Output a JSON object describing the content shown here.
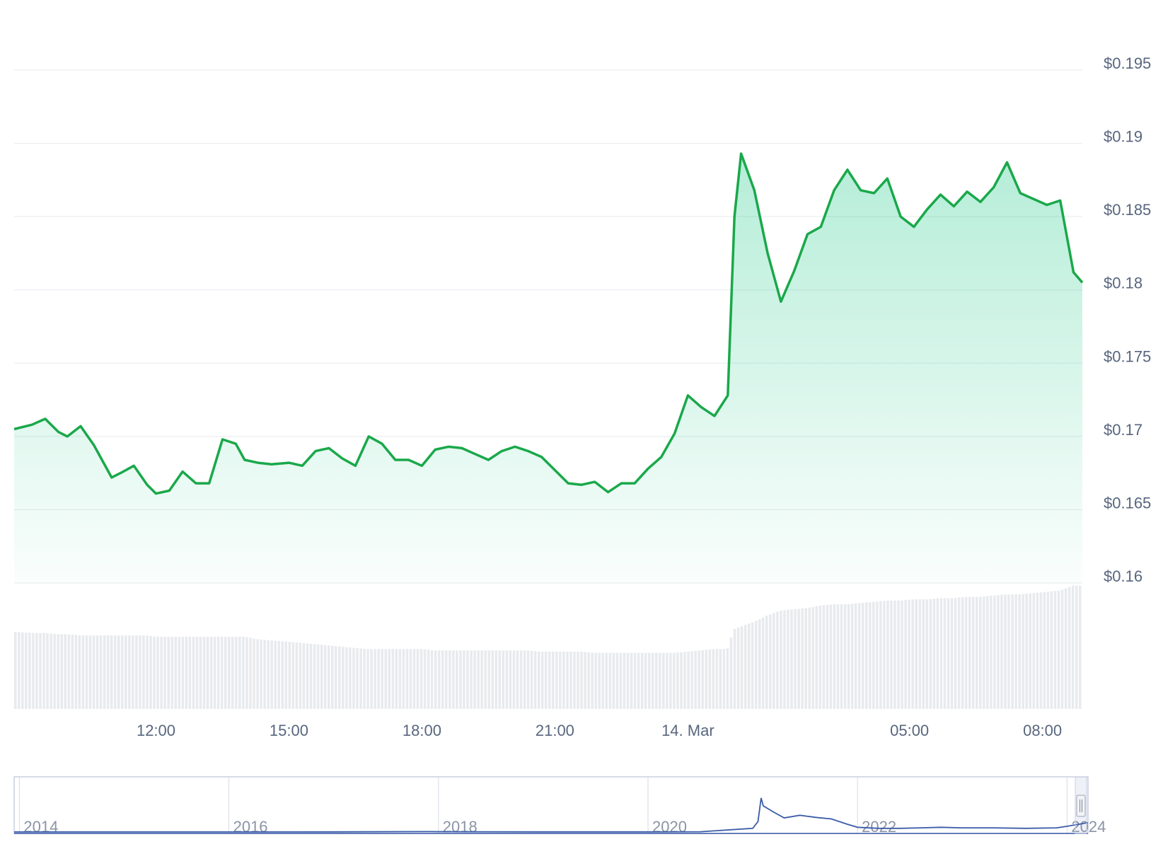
{
  "colors": {
    "line": "#16c784",
    "line_stroke": "#1aa84a",
    "area_top": "#16c784",
    "volume": "#e8eaed",
    "navigator_line": "#3a5ba8",
    "grid": "#e6e9ee",
    "tick_text": "#58667e"
  },
  "chart_data": [
    {
      "type": "area",
      "ylim": [
        0.16,
        0.195
      ],
      "y_ticks": [
        "$0.195",
        "$0.19",
        "$0.185",
        "$0.18",
        "$0.175",
        "$0.17",
        "$0.165",
        "$0.16"
      ],
      "y_tick_values": [
        0.195,
        0.19,
        0.185,
        0.18,
        0.175,
        0.17,
        0.165,
        0.16
      ],
      "x_ticks": [
        "12:00",
        "15:00",
        "18:00",
        "21:00",
        "14. Mar",
        "05:00",
        "08:00"
      ],
      "x_tick_hours": [
        12,
        15,
        18,
        21,
        24,
        29,
        32
      ],
      "xlim_hours": [
        8.8,
        32.9
      ],
      "grid": true,
      "series": [
        {
          "hours": [
            8.8,
            9.2,
            9.5,
            9.8,
            10.0,
            10.3,
            10.6,
            11.0,
            11.2,
            11.5,
            11.8,
            12.0,
            12.3,
            12.6,
            12.9,
            13.2,
            13.5,
            13.8,
            14.0,
            14.3,
            14.6,
            15.0,
            15.3,
            15.6,
            15.9,
            16.2,
            16.5,
            16.8,
            17.1,
            17.4,
            17.7,
            18.0,
            18.3,
            18.6,
            18.9,
            19.2,
            19.5,
            19.8,
            20.1,
            20.4,
            20.7,
            21.0,
            21.3,
            21.6,
            21.9,
            22.2,
            22.5,
            22.8,
            23.1,
            23.4,
            23.7,
            24.0,
            24.3,
            24.6,
            24.9,
            25.05,
            25.2,
            25.5,
            25.8,
            26.1,
            26.4,
            26.7,
            27.0,
            27.3,
            27.6,
            27.9,
            28.2,
            28.5,
            28.8,
            29.1,
            29.4,
            29.7,
            30.0,
            30.3,
            30.6,
            30.9,
            31.2,
            31.5,
            31.8,
            32.1,
            32.4,
            32.7,
            32.9
          ],
          "values": [
            0.1705,
            0.1708,
            0.1712,
            0.1703,
            0.17,
            0.1707,
            0.1694,
            0.1672,
            0.1675,
            0.168,
            0.1667,
            0.1661,
            0.1663,
            0.1676,
            0.1668,
            0.1668,
            0.1698,
            0.1695,
            0.1684,
            0.1682,
            0.1681,
            0.1682,
            0.168,
            0.169,
            0.1692,
            0.1685,
            0.168,
            0.17,
            0.1695,
            0.1684,
            0.1684,
            0.168,
            0.1691,
            0.1693,
            0.1692,
            0.1688,
            0.1684,
            0.169,
            0.1693,
            0.169,
            0.1686,
            0.1677,
            0.1668,
            0.1667,
            0.1669,
            0.1662,
            0.1668,
            0.1668,
            0.1678,
            0.1686,
            0.1702,
            0.1728,
            0.172,
            0.1714,
            0.1728,
            0.185,
            0.1893,
            0.1868,
            0.1825,
            0.1792,
            0.1813,
            0.1838,
            0.1843,
            0.1868,
            0.1882,
            0.1868,
            0.1866,
            0.1876,
            0.185,
            0.1843,
            0.1855,
            0.1865,
            0.1857,
            0.1867,
            0.186,
            0.187,
            0.1887,
            0.1866,
            0.1862,
            0.1858,
            0.1861,
            0.1812,
            0.1805
          ],
          "volume": [
            0.62,
            0.61,
            0.61,
            0.6,
            0.6,
            0.59,
            0.59,
            0.59,
            0.59,
            0.59,
            0.59,
            0.58,
            0.58,
            0.58,
            0.58,
            0.58,
            0.58,
            0.58,
            0.58,
            0.56,
            0.55,
            0.54,
            0.53,
            0.52,
            0.51,
            0.5,
            0.49,
            0.48,
            0.48,
            0.48,
            0.48,
            0.48,
            0.47,
            0.47,
            0.47,
            0.47,
            0.47,
            0.47,
            0.47,
            0.47,
            0.46,
            0.46,
            0.46,
            0.46,
            0.45,
            0.45,
            0.45,
            0.45,
            0.45,
            0.45,
            0.45,
            0.46,
            0.47,
            0.48,
            0.48,
            0.64,
            0.66,
            0.7,
            0.75,
            0.79,
            0.8,
            0.81,
            0.83,
            0.84,
            0.84,
            0.85,
            0.86,
            0.87,
            0.87,
            0.88,
            0.88,
            0.89,
            0.89,
            0.9,
            0.9,
            0.91,
            0.92,
            0.92,
            0.93,
            0.94,
            0.95,
            0.99,
            0.99
          ]
        }
      ]
    },
    {
      "type": "line",
      "role": "navigator",
      "x_ticks": [
        "2014",
        "2016",
        "2018",
        "2020",
        "2022",
        "2024"
      ],
      "x_tick_years": [
        2014,
        2016,
        2018,
        2020,
        2022,
        2024
      ],
      "xlim_years": [
        2013.95,
        2024.2
      ],
      "series": [
        {
          "years": [
            2013.95,
            2015.0,
            2016.0,
            2017.0,
            2017.9,
            2018.2,
            2019.0,
            2020.0,
            2020.5,
            2021.0,
            2021.05,
            2021.08,
            2021.1,
            2021.2,
            2021.3,
            2021.45,
            2021.6,
            2021.75,
            2021.9,
            2022.0,
            2022.2,
            2022.4,
            2022.6,
            2022.8,
            2023.0,
            2023.3,
            2023.6,
            2023.9,
            2024.0,
            2024.2
          ],
          "values": [
            0.001,
            0.001,
            0.001,
            0.003,
            0.008,
            0.005,
            0.003,
            0.003,
            0.005,
            0.07,
            0.2,
            0.65,
            0.5,
            0.38,
            0.27,
            0.32,
            0.28,
            0.25,
            0.15,
            0.09,
            0.07,
            0.07,
            0.08,
            0.09,
            0.08,
            0.08,
            0.07,
            0.08,
            0.11,
            0.18
          ]
        }
      ]
    }
  ]
}
